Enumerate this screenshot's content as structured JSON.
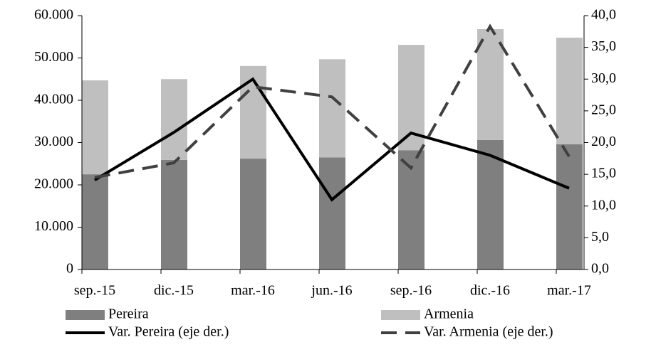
{
  "chart_data": {
    "type": "bar-line",
    "categories": [
      "sep.-15",
      "dic.-15",
      "mar.-16",
      "jun.-16",
      "sep.-16",
      "dic.-16",
      "mar.-17"
    ],
    "series": [
      {
        "name": "Pereira",
        "type": "bar",
        "color": "#7f7f7f",
        "values": [
          22500,
          25900,
          26200,
          26500,
          28200,
          30600,
          29600
        ]
      },
      {
        "name": "Armenia",
        "type": "bar",
        "color": "#bfbfbf",
        "values": [
          22200,
          19100,
          21900,
          23200,
          24900,
          26200,
          25200
        ]
      },
      {
        "name": "Var. Pereira (eje der.)",
        "type": "line",
        "axis": "y2",
        "color": "#000000",
        "dash": "solid",
        "values": [
          14.1,
          21.6,
          30.0,
          11.0,
          21.5,
          18.0,
          12.8
        ]
      },
      {
        "name": "Var. Armenia (eje der.)",
        "type": "line",
        "axis": "y2",
        "color": "#404040",
        "dash": "dashed",
        "values": [
          14.5,
          16.8,
          28.8,
          27.2,
          16.0,
          38.3,
          17.8
        ]
      }
    ],
    "ylim": [
      0,
      60000
    ],
    "yticks": [
      0,
      {
        "value": 10000,
        "label": "10.000"
      },
      {
        "value": 20000,
        "label": "20.000"
      },
      {
        "value": 30000,
        "label": "30.000"
      },
      {
        "value": 40000,
        "label": "40.000"
      },
      {
        "value": 50000,
        "label": "50.000"
      },
      {
        "value": 60000,
        "label": "60.000"
      }
    ],
    "y2lim": [
      0,
      40
    ],
    "y2ticks": [
      {
        "value": 0,
        "label": "0,0"
      },
      {
        "value": 5,
        "label": "5,0"
      },
      {
        "value": 10,
        "label": "10,0"
      },
      {
        "value": 15,
        "label": "15,0"
      },
      {
        "value": 20,
        "label": "20,0"
      },
      {
        "value": 25,
        "label": "25,0"
      },
      {
        "value": 30,
        "label": "30,0"
      },
      {
        "value": 35,
        "label": "35,0"
      },
      {
        "value": 40,
        "label": "40,0"
      }
    ],
    "legend": "bottom"
  }
}
